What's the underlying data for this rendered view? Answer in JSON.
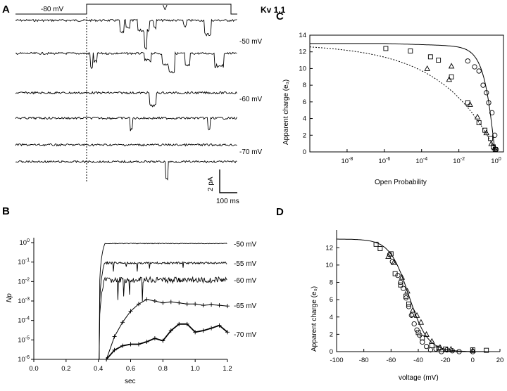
{
  "figure": {
    "panels": [
      "A",
      "B",
      "C",
      "D"
    ],
    "title": "Kv 1.1"
  },
  "panel_a": {
    "protocol_labels": [
      "-80  mV",
      "V"
    ],
    "voltage_labels": [
      "-50  mV",
      "-60  mV",
      "-70  mV"
    ],
    "scale_bar": {
      "current": "2 pA",
      "time": "100 ms"
    }
  },
  "chart_data": [
    {
      "panel": "B",
      "type": "line",
      "xlabel": "sec",
      "ylabel": "Np",
      "xlim": [
        0.0,
        1.2
      ],
      "ylim": [
        1e-06,
        1
      ],
      "yscale": "log",
      "x_ticks": [
        "0.0",
        "0.2",
        "0.4",
        "0.6",
        "0.8",
        "1.0",
        "1.2"
      ],
      "y_ticks_exponents": [
        0,
        -1,
        -2,
        -3,
        -4,
        -5,
        -6
      ],
      "series": [
        {
          "name": "-50 mV",
          "level": 0.9
        },
        {
          "name": "-55 mV",
          "level": 0.09
        },
        {
          "name": "-60 mV",
          "level": 0.012
        },
        {
          "name": "-65 mV",
          "x": [
            0.45,
            0.5,
            0.55,
            0.6,
            0.65,
            0.7,
            0.75,
            0.8,
            0.85,
            0.9,
            0.95,
            1.0,
            1.05,
            1.1,
            1.15,
            1.2
          ],
          "y": [
            1e-06,
            1.5e-05,
            8e-05,
            0.0003,
            0.0007,
            0.0012,
            0.001,
            0.0008,
            0.0009,
            0.0008,
            0.0007,
            0.0007,
            0.0006,
            0.00065,
            0.0006,
            0.00055
          ]
        },
        {
          "name": "-70 mV",
          "x": [
            0.45,
            0.5,
            0.55,
            0.6,
            0.65,
            0.7,
            0.75,
            0.8,
            0.85,
            0.9,
            0.95,
            1.0,
            1.05,
            1.1,
            1.15,
            1.2
          ],
          "y": [
            1e-06,
            3e-06,
            5e-06,
            6e-06,
            6e-06,
            8e-06,
            1.2e-05,
            9e-06,
            3e-05,
            6.5e-05,
            6.5e-05,
            2.5e-05,
            3e-05,
            4e-05,
            5.5e-05,
            2.5e-05
          ]
        }
      ]
    },
    {
      "panel": "C",
      "type": "scatter",
      "xlabel": "Open Probability",
      "ylabel": "Apparent charge (e₀)",
      "xscale": "log",
      "xlim": [
        1e-10,
        1
      ],
      "ylim": [
        0,
        14
      ],
      "x_ticks_exponents": [
        -8,
        -6,
        -4,
        -2,
        0
      ],
      "y_ticks": [
        0,
        2,
        4,
        6,
        8,
        10,
        12,
        14
      ],
      "series": [
        {
          "marker": "square",
          "x": [
            1.2e-06,
            2.5e-05,
            0.0003,
            0.0008,
            0.004,
            0.03,
            0.12,
            0.25,
            0.5,
            0.7,
            0.9
          ],
          "y": [
            12.4,
            12.1,
            11.4,
            11.0,
            9.0,
            5.9,
            3.5,
            2.6,
            1.6,
            0.6,
            0.3
          ]
        },
        {
          "marker": "triangle",
          "x": [
            0.0002,
            0.004,
            0.003,
            0.04,
            0.1,
            0.3,
            0.55,
            0.85
          ],
          "y": [
            10.0,
            10.3,
            8.7,
            5.7,
            4.2,
            2.3,
            1.0,
            0.5
          ]
        },
        {
          "marker": "circle",
          "x": [
            0.03,
            0.07,
            0.12,
            0.2,
            0.3,
            0.4,
            0.6,
            0.85,
            1.0
          ],
          "y": [
            10.9,
            10.2,
            9.7,
            8.0,
            7.1,
            5.9,
            4.7,
            2.0,
            0.3
          ]
        }
      ]
    },
    {
      "panel": "D",
      "type": "scatter",
      "xlabel": "voltage (mV)",
      "ylabel": "Apparent charge (e₀)",
      "xlim": [
        -100,
        20
      ],
      "ylim": [
        0,
        13
      ],
      "x_ticks": [
        -100,
        -80,
        -60,
        -40,
        -20,
        0,
        20
      ],
      "y_ticks": [
        0,
        2,
        4,
        6,
        8,
        10,
        12
      ],
      "series": [
        {
          "marker": "square",
          "x": [
            -71,
            -68,
            -60,
            -57,
            -53,
            -49,
            -47,
            -44,
            -40,
            -37,
            -30,
            -25,
            -20,
            0,
            10
          ],
          "y": [
            12.4,
            11.9,
            11.3,
            9.0,
            7.7,
            6.4,
            5.5,
            4.3,
            2.2,
            1.6,
            0.7,
            0.4,
            0.3,
            0.2,
            0.15
          ]
        },
        {
          "marker": "triangle",
          "x": [
            -62,
            -58,
            -52,
            -48,
            -44,
            -41,
            -38,
            -34,
            -30,
            -24,
            -16,
            0
          ],
          "y": [
            11.0,
            10.3,
            8.6,
            7.0,
            4.8,
            4.2,
            3.4,
            2.0,
            1.2,
            0.5,
            0.3,
            0.15
          ]
        },
        {
          "marker": "circle",
          "x": [
            -61,
            -59,
            -55,
            -53,
            -51,
            -49,
            -47,
            -45,
            -43,
            -41,
            -39,
            -37,
            -34,
            -31,
            -27,
            -23,
            -19,
            -15,
            -10,
            0
          ],
          "y": [
            11.2,
            10.4,
            8.8,
            8.0,
            7.3,
            6.2,
            5.2,
            4.2,
            3.2,
            2.5,
            1.9,
            1.1,
            0.6,
            0.2,
            0.3,
            0.0,
            0.2,
            0.1,
            0.0,
            0.0
          ]
        }
      ]
    }
  ]
}
